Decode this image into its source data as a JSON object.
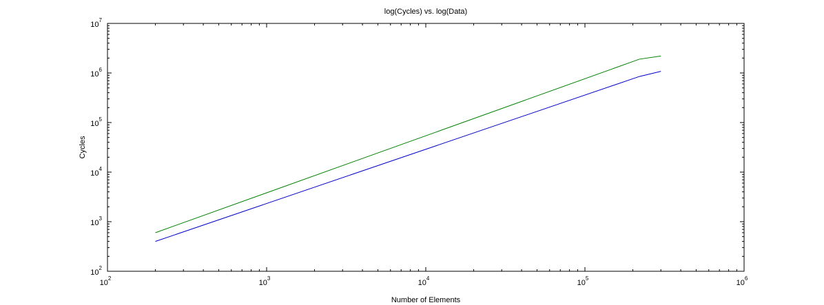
{
  "chart_data": {
    "type": "line",
    "title": "log(Cycles) vs. log(Data)",
    "xlabel": "Number of Elements",
    "ylabel": "Cycles",
    "xscale": "log",
    "yscale": "log",
    "xlim": [
      100,
      1000000
    ],
    "ylim": [
      100,
      10000000
    ],
    "grid": false,
    "x_ticks": [
      {
        "value": 100,
        "base": "10",
        "exp": "2"
      },
      {
        "value": 1000,
        "base": "10",
        "exp": "3"
      },
      {
        "value": 10000,
        "base": "10",
        "exp": "4"
      },
      {
        "value": 100000,
        "base": "10",
        "exp": "5"
      },
      {
        "value": 1000000,
        "base": "10",
        "exp": "6"
      }
    ],
    "y_ticks": [
      {
        "value": 100,
        "base": "10",
        "exp": "2"
      },
      {
        "value": 1000,
        "base": "10",
        "exp": "3"
      },
      {
        "value": 10000,
        "base": "10",
        "exp": "4"
      },
      {
        "value": 100000,
        "base": "10",
        "exp": "5"
      },
      {
        "value": 1000000,
        "base": "10",
        "exp": "6"
      },
      {
        "value": 10000000,
        "base": "10",
        "exp": "7"
      }
    ],
    "series": [
      {
        "color": "#008000",
        "x": [
          200,
          220000,
          300000
        ],
        "y": [
          600,
          1900000,
          2200000
        ]
      },
      {
        "color": "#0000cc",
        "x": [
          200,
          220000,
          300000
        ],
        "y": [
          400,
          850000,
          1080000
        ]
      }
    ]
  }
}
